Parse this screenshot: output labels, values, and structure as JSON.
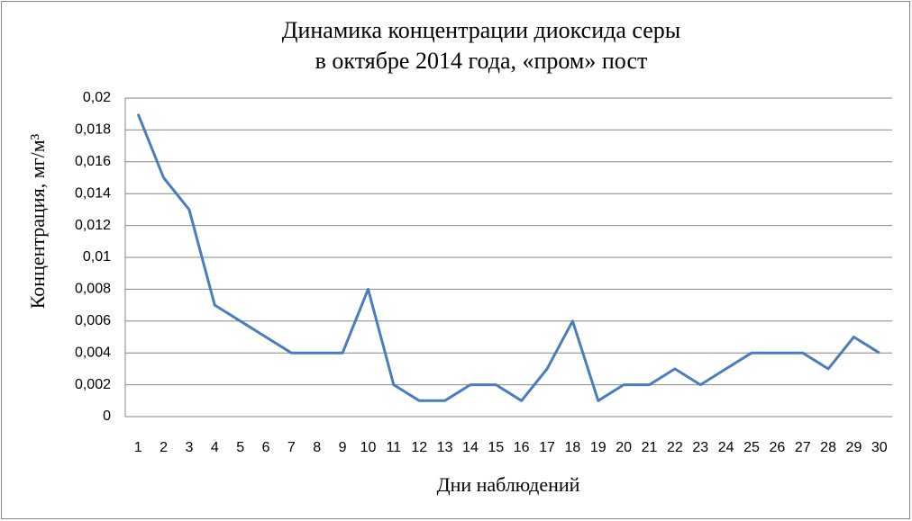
{
  "chart_data": {
    "type": "line",
    "title": [
      "Динамика концентрации диоксида серы",
      "в октябре 2014 года, «пром» пост"
    ],
    "x_label": "Дни наблюдений",
    "y_label": "Концентрация, мг/м³",
    "categories": [
      "1",
      "2",
      "3",
      "4",
      "5",
      "6",
      "7",
      "8",
      "9",
      "10",
      "11",
      "12",
      "13",
      "14",
      "15",
      "16",
      "17",
      "18",
      "19",
      "20",
      "21",
      "22",
      "23",
      "24",
      "25",
      "26",
      "27",
      "28",
      "29",
      "30"
    ],
    "series": [
      {
        "color": "#4a7ebb",
        "values": [
          0.019,
          0.015,
          0.013,
          0.007,
          0.006,
          0.005,
          0.004,
          0.004,
          0.004,
          0.008,
          0.002,
          0.001,
          0.001,
          0.002,
          0.002,
          0.001,
          0.003,
          0.006,
          0.001,
          0.002,
          0.002,
          0.003,
          0.002,
          0.003,
          0.004,
          0.004,
          0.004,
          0.003,
          0.005,
          0.004
        ]
      }
    ],
    "ylim": [
      0,
      0.02
    ],
    "yticks": [
      0,
      {
        "value": 0.002,
        "label": "0,002"
      },
      {
        "value": 0.004,
        "label": "0,004"
      },
      {
        "value": 0.006,
        "label": "0,006"
      },
      {
        "value": 0.008,
        "label": "0,008"
      },
      {
        "value": 0.01,
        "label": "0,01"
      },
      {
        "value": 0.012,
        "label": "0,012"
      },
      {
        "value": 0.014,
        "label": "0,014"
      },
      {
        "value": 0.016,
        "label": "0,016"
      },
      {
        "value": 0.018,
        "label": "0,018"
      },
      {
        "value": 0.02,
        "label": "0,02"
      }
    ],
    "grid": true
  }
}
